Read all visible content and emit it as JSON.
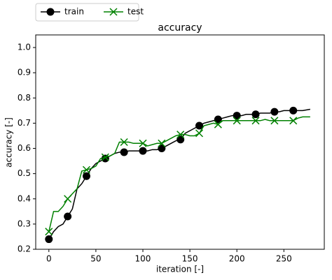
{
  "chart_data": {
    "type": "line",
    "title": "accuracy",
    "x_label": "iteration [-]",
    "y_label": "accuracy [-]",
    "x": [
      0,
      5,
      10,
      15,
      20,
      25,
      30,
      35,
      40,
      45,
      50,
      55,
      60,
      65,
      70,
      75,
      80,
      85,
      90,
      95,
      100,
      105,
      110,
      115,
      120,
      125,
      130,
      135,
      140,
      145,
      150,
      155,
      160,
      165,
      170,
      175,
      180,
      185,
      190,
      195,
      200,
      205,
      210,
      215,
      220,
      225,
      230,
      235,
      240,
      245,
      250,
      255,
      260,
      265,
      270,
      278
    ],
    "series": [
      {
        "name": "train",
        "color": "#000000",
        "marker": "o",
        "values": [
          0.24,
          0.27,
          0.29,
          0.3,
          0.33,
          0.36,
          0.44,
          0.46,
          0.49,
          0.52,
          0.54,
          0.55,
          0.56,
          0.57,
          0.58,
          0.585,
          0.585,
          0.59,
          0.59,
          0.59,
          0.59,
          0.59,
          0.595,
          0.595,
          0.6,
          0.61,
          0.62,
          0.63,
          0.635,
          0.66,
          0.67,
          0.68,
          0.69,
          0.7,
          0.705,
          0.71,
          0.715,
          0.72,
          0.725,
          0.73,
          0.73,
          0.73,
          0.735,
          0.735,
          0.735,
          0.74,
          0.74,
          0.74,
          0.745,
          0.745,
          0.75,
          0.75,
          0.75,
          0.75,
          0.75,
          0.755
        ]
      },
      {
        "name": "test",
        "color": "#008000",
        "marker": "x",
        "values": [
          0.27,
          0.35,
          0.35,
          0.37,
          0.4,
          0.42,
          0.44,
          0.51,
          0.515,
          0.52,
          0.53,
          0.56,
          0.565,
          0.57,
          0.58,
          0.625,
          0.625,
          0.625,
          0.62,
          0.62,
          0.62,
          0.61,
          0.615,
          0.62,
          0.62,
          0.63,
          0.64,
          0.65,
          0.655,
          0.655,
          0.65,
          0.65,
          0.66,
          0.69,
          0.695,
          0.7,
          0.695,
          0.71,
          0.71,
          0.71,
          0.71,
          0.71,
          0.71,
          0.71,
          0.71,
          0.71,
          0.715,
          0.71,
          0.71,
          0.71,
          0.71,
          0.71,
          0.71,
          0.72,
          0.725,
          0.725
        ]
      }
    ],
    "markevery": 4,
    "xlim": [
      -14,
      293
    ],
    "xticks": [
      0,
      50,
      100,
      150,
      200,
      250
    ],
    "ylim": [
      0.2,
      1.05
    ],
    "yticks": [
      0.2,
      0.3,
      0.4,
      0.5,
      0.6,
      0.7,
      0.8,
      0.9,
      {
        "value": 1,
        "label": "1.0"
      }
    ],
    "grid": false,
    "legend": "top-left-outside"
  }
}
